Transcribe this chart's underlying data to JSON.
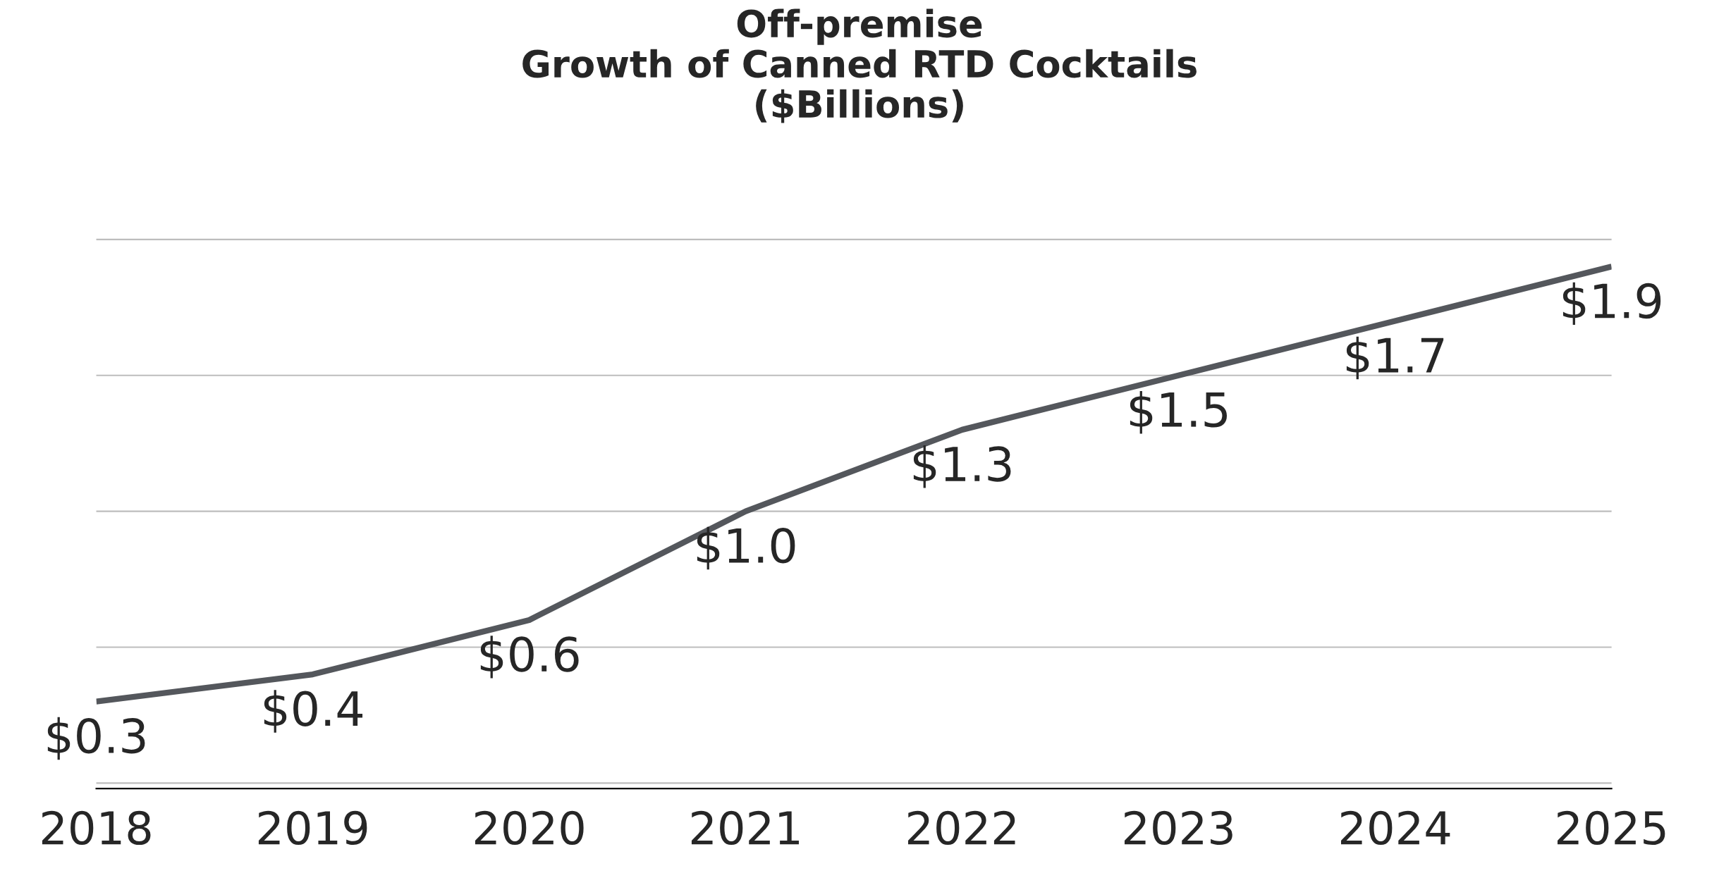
{
  "chart_data": {
    "type": "line",
    "title": "Off-premise\nGrowth of Canned RTD Cocktails\n($Billions)",
    "categories": [
      "2018",
      "2019",
      "2020",
      "2021",
      "2022",
      "2023",
      "2024",
      "2025"
    ],
    "series": [
      {
        "color": "#54575c",
        "values": [
          0.3,
          0.4,
          0.6,
          1.0,
          1.3,
          1.5,
          1.7,
          1.9
        ],
        "value_labels": [
          "$0.3",
          "$0.4",
          "$0.6",
          "$1.0",
          "$1.3",
          "$1.5",
          "$1.7",
          "$1.9"
        ]
      }
    ],
    "grid": "y",
    "tick_labels": "x",
    "legend": false,
    "marker": "none",
    "line_style": "solid"
  }
}
